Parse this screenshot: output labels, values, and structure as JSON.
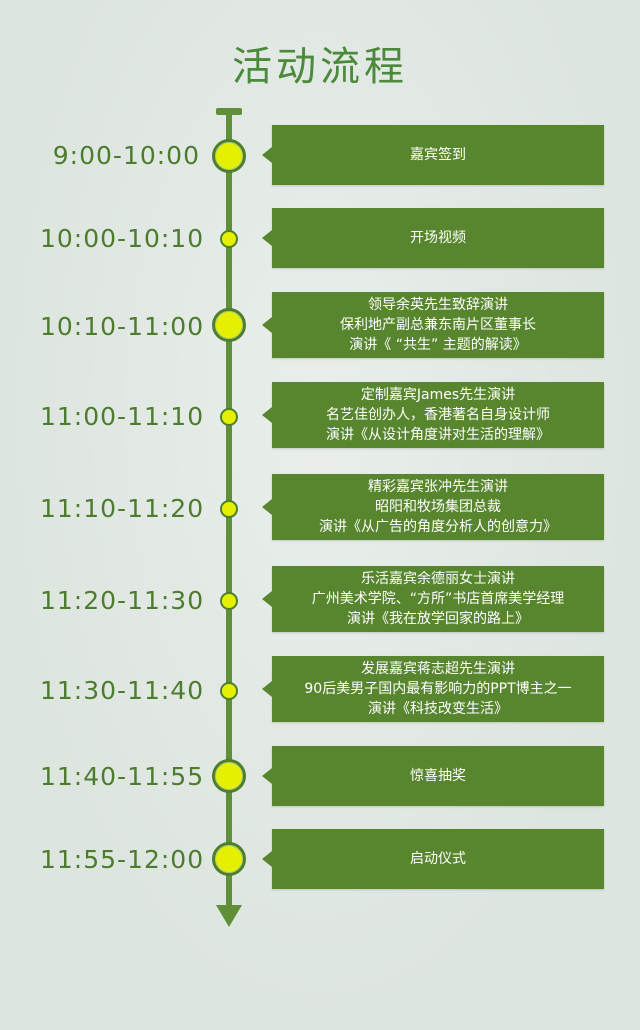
{
  "title": "活动流程",
  "items": [
    {
      "time": "9:00-10:00",
      "lines": [
        "嘉宾签到"
      ]
    },
    {
      "time": "10:00-10:10",
      "lines": [
        "开场视频"
      ]
    },
    {
      "time": "10:10-11:00",
      "lines": [
        "领导余英先生致辞演讲",
        "保利地产副总兼东南片区董事长",
        "演讲《 “共生” 主题的解读》"
      ]
    },
    {
      "time": "11:00-11:10",
      "lines": [
        "定制嘉宾James先生演讲",
        "名艺佳创办人，香港著名自身设计师",
        "演讲《从设计角度讲对生活的理解》"
      ]
    },
    {
      "time": "11:10-11:20",
      "lines": [
        "精彩嘉宾张冲先生演讲",
        "昭阳和牧场集团总裁",
        "演讲《从广告的角度分析人的创意力》"
      ]
    },
    {
      "time": "11:20-11:30",
      "lines": [
        "乐活嘉宾余德丽女士演讲",
        "广州美术学院、“方所”书店首席美学经理",
        "演讲《我在放学回家的路上》"
      ]
    },
    {
      "time": "11:30-11:40",
      "lines": [
        "发展嘉宾蒋志超先生演讲",
        "90后美男子国内最有影响力的PPT博主之一",
        "演讲《科技改变生活》"
      ]
    },
    {
      "time": "11:40-11:55",
      "lines": [
        "惊喜抽奖"
      ]
    },
    {
      "time": "11:55-12:00",
      "lines": [
        "启动仪式"
      ]
    }
  ],
  "colors": {
    "accent": "#58862f",
    "dot": "#e4f000",
    "time_text": "#4c7c2e"
  }
}
